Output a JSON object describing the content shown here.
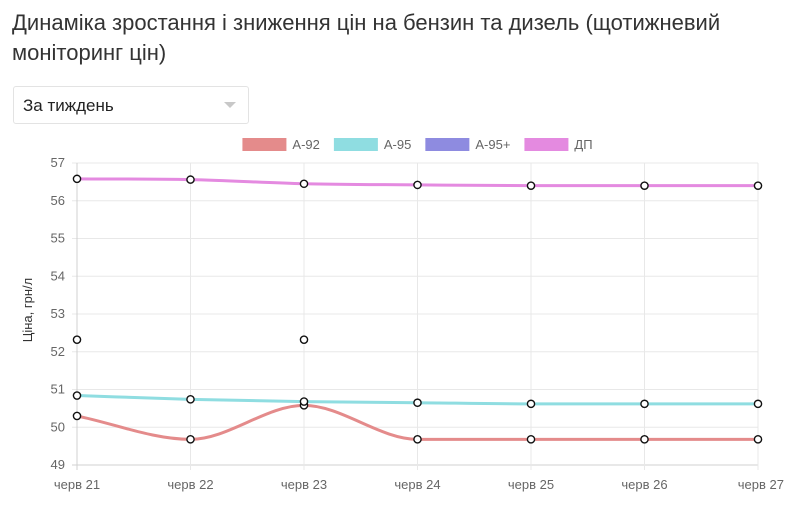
{
  "title": "Динаміка зростання і зниження цін на бензин та дизель (щотижневий моніторинг цін)",
  "period_select": {
    "value": "За тиждень"
  },
  "chart_data": {
    "type": "line",
    "title": "",
    "xlabel": "",
    "ylabel": "Ціна, грн/л",
    "x": [
      "черв 21",
      "черв 22",
      "черв 23",
      "черв 24",
      "черв 25",
      "черв 26",
      "черв 27"
    ],
    "ylim": [
      49,
      57
    ],
    "yticks": [
      49,
      50,
      51,
      52,
      53,
      54,
      55,
      56,
      57
    ],
    "grid": true,
    "legend_position": "top",
    "series": [
      {
        "name": "А-92",
        "color": "#e48b8b",
        "values": [
          50.3,
          49.68,
          50.58,
          49.68,
          49.68,
          49.68,
          49.68
        ]
      },
      {
        "name": "А-95",
        "color": "#8fdde1",
        "values": [
          50.84,
          50.74,
          50.68,
          50.65,
          50.62,
          50.62,
          50.62
        ]
      },
      {
        "name": "А-95+",
        "color": "#8e8be0",
        "values": [
          52.32,
          null,
          52.32,
          null,
          null,
          null,
          null
        ]
      },
      {
        "name": "ДП",
        "color": "#e48ae0",
        "values": [
          56.58,
          56.56,
          56.45,
          56.42,
          56.4,
          56.4,
          56.4
        ]
      }
    ]
  }
}
